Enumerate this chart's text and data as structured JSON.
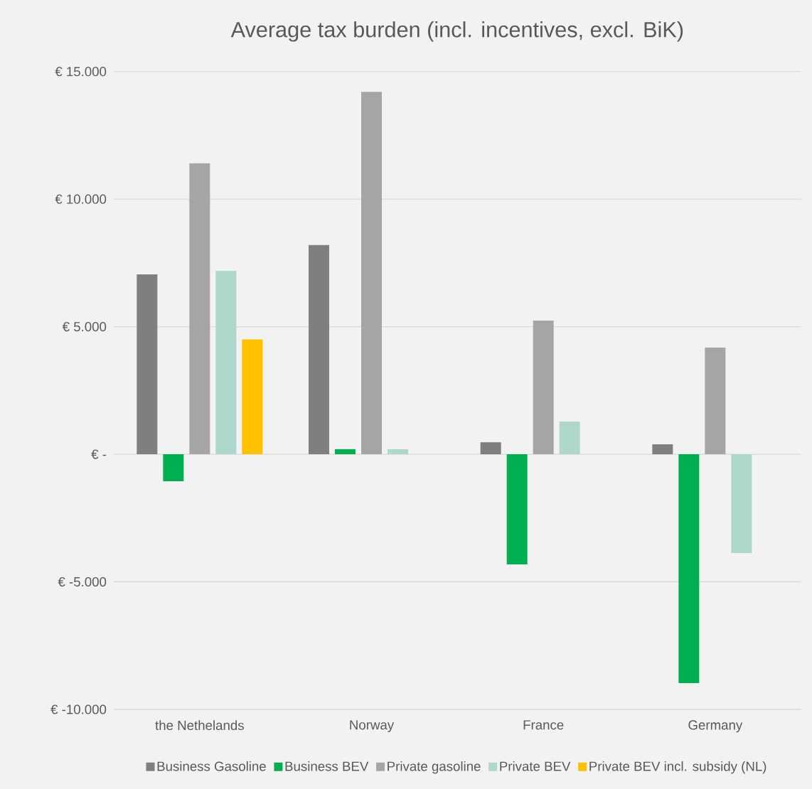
{
  "chart_data": {
    "type": "bar",
    "title": "Average tax burden (incl. incentives, excl. BiK)",
    "categories": [
      "the Nethelands",
      "Norway",
      "France",
      "Germany"
    ],
    "series": [
      {
        "name": "Business Gasoline",
        "color": "#7f7f7f",
        "values": [
          7050,
          8200,
          470,
          390
        ]
      },
      {
        "name": "Business BEV",
        "color": "#00b050",
        "values": [
          -1060,
          200,
          -4320,
          -8970
        ]
      },
      {
        "name": "Private gasoline",
        "color": "#a5a5a5",
        "values": [
          11400,
          14200,
          5240,
          4180
        ]
      },
      {
        "name": "Private BEV",
        "color": "#aed8cc",
        "values": [
          7190,
          200,
          1280,
          -3870
        ]
      },
      {
        "name": "Private BEV incl. subsidy (NL)",
        "color": "#ffc000",
        "values": [
          4500,
          null,
          null,
          null
        ]
      }
    ],
    "ylim": [
      -10000,
      15000
    ],
    "yticks": [
      {
        "value": -10000,
        "label": "€ -10.000"
      },
      {
        "value": -5000,
        "label": "€ -5.000"
      },
      {
        "value": 0,
        "label": "€ -"
      },
      {
        "value": 5000,
        "label": "€ 5.000"
      },
      {
        "value": 10000,
        "label": "€ 10.000"
      },
      {
        "value": 15000,
        "label": "€ 15.000"
      }
    ],
    "grid": "y",
    "legend": "bottom"
  }
}
